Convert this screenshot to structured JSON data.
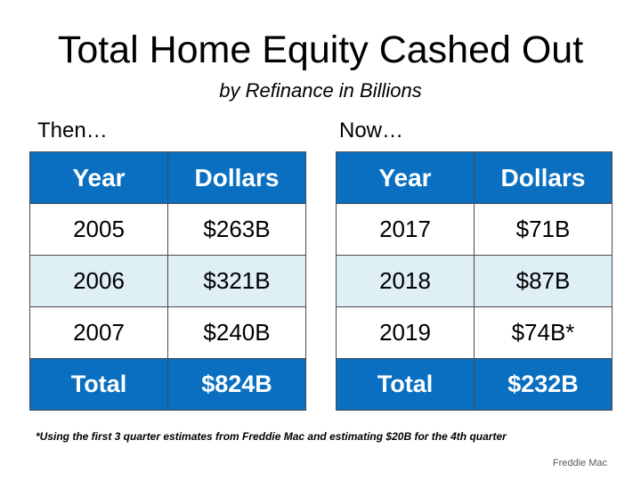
{
  "title": "Total Home Equity Cashed Out",
  "subtitle": "by Refinance in Billions",
  "chart_data": {
    "type": "table",
    "tables": [
      {
        "label": "Then…",
        "columns": [
          "Year",
          "Dollars"
        ],
        "rows": [
          [
            "2005",
            "$263B"
          ],
          [
            "2006",
            "$321B"
          ],
          [
            "2007",
            "$240B"
          ]
        ],
        "total": [
          "Total",
          "$824B"
        ]
      },
      {
        "label": "Now…",
        "columns": [
          "Year",
          "Dollars"
        ],
        "rows": [
          [
            "2017",
            "$71B"
          ],
          [
            "2018",
            "$87B"
          ],
          [
            "2019",
            "$74B*"
          ]
        ],
        "total": [
          "Total",
          "$232B"
        ]
      }
    ]
  },
  "footnote": "*Using the first 3 quarter estimates from Freddie Mac and estimating $20B for the 4th quarter",
  "source": "Freddie Mac",
  "colors": {
    "header_bg": "#0a6fc1",
    "alt_row_bg": "#deeff6"
  }
}
